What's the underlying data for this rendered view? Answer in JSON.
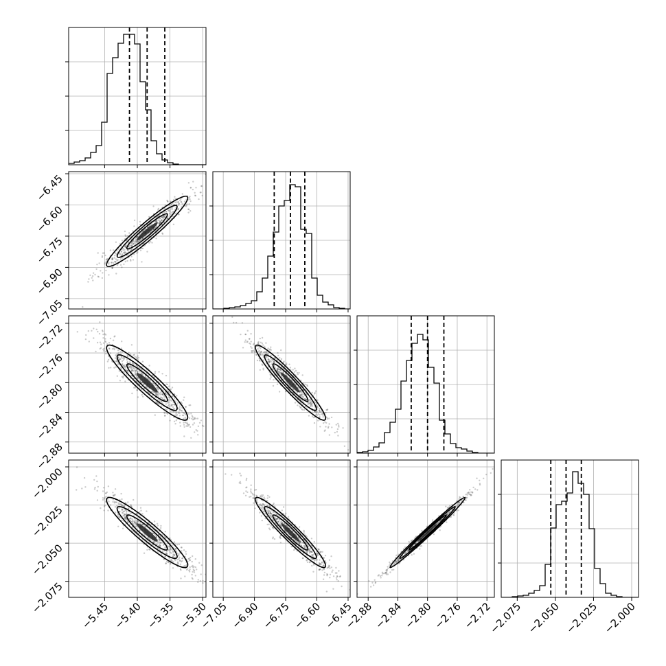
{
  "chart_data": {
    "type": "corner",
    "parameters": [
      {
        "index": 0,
        "range": [
          -5.505,
          -5.295
        ],
        "ticks": [
          -5.45,
          -5.4,
          -5.35,
          -5.3
        ],
        "tick_labels": [
          "−5.45",
          "−5.40",
          "−5.35",
          "−5.30"
        ],
        "quantiles": [
          -5.412,
          -5.385,
          -5.358
        ],
        "hist_edges_start": -5.505,
        "hist_bin_width": 0.0084,
        "hist_counts": [
          2,
          4,
          6,
          10,
          18,
          28,
          62,
          133,
          156,
          177,
          190,
          190,
          176,
          121,
          80,
          35,
          16,
          7,
          3,
          1,
          0,
          0,
          0,
          0,
          0
        ]
      },
      {
        "index": 1,
        "range": [
          -7.1,
          -6.44
        ],
        "ticks": [
          -7.05,
          -6.9,
          -6.75,
          -6.6,
          -6.45
        ],
        "tick_labels": [
          "−7.05",
          "−6.90",
          "−6.75",
          "−6.60",
          "−6.45"
        ],
        "quantiles": [
          -6.805,
          -6.727,
          -6.658
        ],
        "hist_edges_start": -7.1,
        "hist_bin_width": 0.0264,
        "hist_counts": [
          0,
          0,
          1,
          2,
          3,
          5,
          8,
          12,
          25,
          45,
          77,
          112,
          150,
          158,
          181,
          178,
          116,
          110,
          45,
          20,
          10,
          6,
          2,
          1,
          0
        ]
      },
      {
        "index": 2,
        "range": [
          -2.895,
          -2.71
        ],
        "ticks": [
          -2.88,
          -2.84,
          -2.8,
          -2.76,
          -2.72
        ],
        "tick_labels": [
          "−2.88",
          "−2.84",
          "−2.80",
          "−2.76",
          "−2.72"
        ],
        "quantiles": [
          -2.822,
          -2.8,
          -2.778
        ],
        "hist_edges_start": -2.895,
        "hist_bin_width": 0.0074,
        "hist_counts": [
          1,
          2,
          4,
          9,
          15,
          30,
          45,
          64,
          105,
          135,
          160,
          173,
          165,
          125,
          102,
          48,
          28,
          14,
          8,
          6,
          3,
          1,
          0,
          0,
          0
        ]
      },
      {
        "index": 3,
        "range": [
          -2.0855,
          -1.9955
        ],
        "ticks": [
          -2.075,
          -2.05,
          -2.025,
          -2.0
        ],
        "tick_labels": [
          "−2.075",
          "−2.050",
          "−2.025",
          "−2.000"
        ],
        "quantiles": [
          -2.053,
          -2.043,
          -2.033
        ],
        "hist_edges_start": -2.0855,
        "hist_bin_width": 0.0036,
        "hist_counts": [
          0,
          0,
          1,
          2,
          3,
          6,
          10,
          17,
          48,
          101,
          135,
          140,
          152,
          183,
          166,
          150,
          100,
          42,
          20,
          6,
          3,
          1,
          0,
          0,
          0
        ]
      }
    ],
    "hist_tick_counts": [
      50,
      100,
      150
    ],
    "correlations": {
      "1-0": 0.95,
      "2-0": -0.93,
      "3-0": -0.93,
      "2-1": -0.95,
      "3-1": -0.95,
      "3-2": 0.99
    },
    "grid": true,
    "quantiles_shown": [
      0.16,
      0.5,
      0.84
    ],
    "colors": {
      "points": "#444444",
      "contour": "#000000",
      "grid": "#b0b0b0"
    }
  }
}
